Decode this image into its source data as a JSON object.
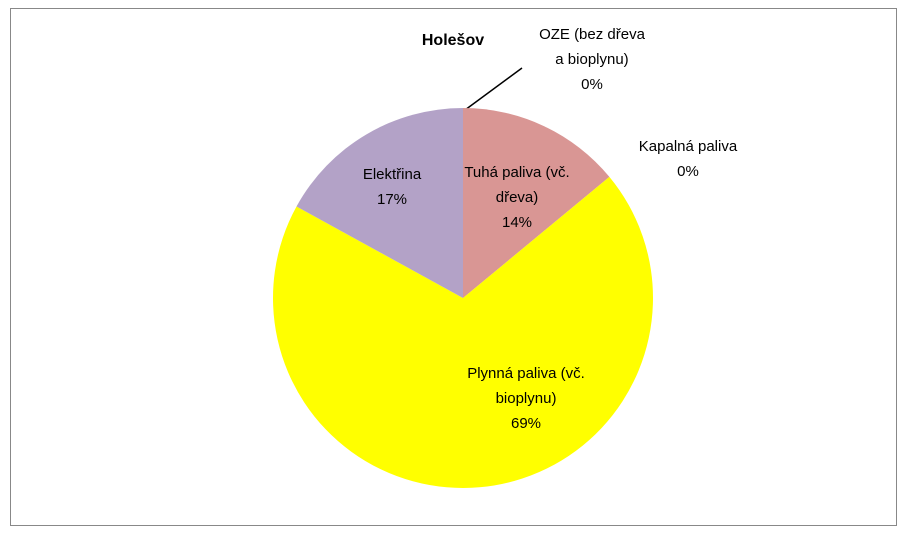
{
  "chart_data": {
    "type": "pie",
    "title": "Holešov",
    "categories": [
      "Tuhá paliva (vč. dřeva)",
      "Kapalná paliva",
      "Plynná paliva (vč. bioplynu)",
      "Elektřina",
      "OZE (bez dřeva a bioplynu)"
    ],
    "values": [
      14,
      0,
      69,
      17,
      0
    ],
    "value_labels": [
      "14%",
      "0%",
      "69%",
      "17%",
      "0%"
    ],
    "colors": [
      "#d99694",
      "#4bacc6",
      "#ffff00",
      "#b3a2c7",
      "#9bbb59"
    ]
  }
}
